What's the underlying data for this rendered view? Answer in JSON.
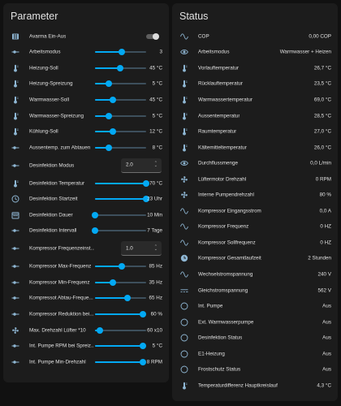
{
  "colors": {
    "accent": "#03a9f4",
    "icon": "#8fb7d4",
    "background": "#111111",
    "card": "#1c1c1c"
  },
  "parameter": {
    "title": "Parameter",
    "rows": [
      {
        "label": "Avarma Ein-Aus",
        "icon": "radiator-icon",
        "type": "toggle",
        "state": "off"
      },
      {
        "label": "Arbeitsmodus",
        "icon": "sliders-horizontal-icon",
        "type": "slider",
        "value": "3",
        "level": 0.52
      },
      {
        "label": "Heizung-Soll",
        "icon": "thermometer-icon",
        "type": "slider",
        "value": "45 °C",
        "level": 0.49
      },
      {
        "label": "Heizung-Spreizung",
        "icon": "thermometer-icon",
        "type": "slider",
        "value": "5 °C",
        "level": 0.27
      },
      {
        "label": "Warmwasser-Soll",
        "icon": "thermometer-icon",
        "type": "slider",
        "value": "45 °C",
        "level": 0.35
      },
      {
        "label": "Warmwasser-Spreizung",
        "icon": "thermometer-icon",
        "type": "slider",
        "value": "5 °C",
        "level": 0.27
      },
      {
        "label": "Kühlung-Soll",
        "icon": "thermometer-icon",
        "type": "slider",
        "value": "12 °C",
        "level": 0.35
      },
      {
        "label": "Aussentemp. zum Abtauen",
        "icon": "sliders-horizontal-icon",
        "type": "slider",
        "value": "8 °C",
        "level": 0.27
      },
      {
        "label": "Desinfektion Modus",
        "icon": "sliders-horizontal-icon",
        "type": "select",
        "value": "2.0"
      },
      {
        "label": "Desinfektion Temperatur",
        "icon": "thermometer-icon",
        "type": "slider",
        "value": "70 °C",
        "level": 1.0
      },
      {
        "label": "Desinfektion Startzeit",
        "icon": "clock-icon",
        "type": "slider",
        "value": "23 Uhr",
        "level": 1.0
      },
      {
        "label": "Desinfektion Dauer",
        "icon": "calendar-icon",
        "type": "slider",
        "value": "10 Min",
        "level": 0.0
      },
      {
        "label": "Desinfektion Intervall",
        "icon": "sliders-horizontal-icon",
        "type": "slider",
        "value": "7 Tage",
        "level": 0.0
      },
      {
        "label": "Kompressor Frequenzeinst...",
        "icon": "sliders-horizontal-icon",
        "type": "select",
        "value": "1.0"
      },
      {
        "label": "Kompressor Max-Frequenz",
        "icon": "sliders-horizontal-icon",
        "type": "slider",
        "value": "85 Hz",
        "level": 0.52
      },
      {
        "label": "Kompressor Min-Frequenz",
        "icon": "sliders-horizontal-icon",
        "type": "slider",
        "value": "35 Hz",
        "level": 0.35
      },
      {
        "label": "Kompressot Abtau-Freque...",
        "icon": "sliders-horizontal-icon",
        "type": "slider",
        "value": "65 Hz",
        "level": 0.63
      },
      {
        "label": "Kompressor Reduktion bei...",
        "icon": "sliders-horizontal-icon",
        "type": "slider",
        "value": "60 %",
        "level": 0.93
      },
      {
        "label": "Max. Drehzahl Lüfter *10",
        "icon": "fan-icon",
        "type": "slider",
        "value": "60 x10",
        "level": 0.1
      },
      {
        "label": "Int. Pumpe RPM bei Spreiz...",
        "icon": "sliders-horizontal-icon",
        "type": "slider",
        "value": "5 °C",
        "level": 0.93
      },
      {
        "label": "Int. Pumpe Min-Drehzahl",
        "icon": "sliders-horizontal-icon",
        "type": "slider",
        "value": "8 RPM",
        "level": 0.93
      }
    ]
  },
  "status": {
    "title": "Status",
    "rows": [
      {
        "label": "COP",
        "icon": "sine-wave-icon",
        "value": "0,00 COP"
      },
      {
        "label": "Arbeitsmodus",
        "icon": "eye-icon",
        "value": "Warmwasser + Heizen"
      },
      {
        "label": "Vorlauftemperatur",
        "icon": "thermometer-icon",
        "value": "26,7 °C"
      },
      {
        "label": "Rücklauftemperatur",
        "icon": "thermometer-icon",
        "value": "23,5 °C"
      },
      {
        "label": "Warmwassertemperatur",
        "icon": "thermometer-icon",
        "value": "69,0 °C"
      },
      {
        "label": "Aussentemperatur",
        "icon": "thermometer-icon",
        "value": "28,5 °C"
      },
      {
        "label": "Raumtemperatur",
        "icon": "thermometer-icon",
        "value": "27,0 °C"
      },
      {
        "label": "Kältemitteltemperatur",
        "icon": "thermometer-icon",
        "value": "26,0 °C"
      },
      {
        "label": "Durchflussmenge",
        "icon": "eye-icon",
        "value": "0,0 L/min"
      },
      {
        "label": "Lüftermotor Drehzahl",
        "icon": "fan-icon",
        "value": "0 RPM"
      },
      {
        "label": "Interne Pumpendrehzahl",
        "icon": "fan-icon",
        "value": "80 %"
      },
      {
        "label": "Kompressor Eingangsstrom",
        "icon": "sine-wave-icon",
        "value": "0,0 A"
      },
      {
        "label": "Kompressor Frequenz",
        "icon": "sine-wave-icon",
        "value": "0 HZ"
      },
      {
        "label": "Kompressor Sollfrequenz",
        "icon": "sine-wave-icon",
        "value": "0 HZ"
      },
      {
        "label": "Kompressor Gesamtlaufzeit",
        "icon": "timer-icon",
        "value": "2 Stunden"
      },
      {
        "label": "Wechselstromspannung",
        "icon": "sine-wave-icon",
        "value": "240 V"
      },
      {
        "label": "Gleichstromspannung",
        "icon": "dc-current-icon",
        "value": "562 V"
      },
      {
        "label": "Int. Pumpe",
        "icon": "circle-outline-icon",
        "value": "Aus"
      },
      {
        "label": "Ext. Warmwasserpumpe",
        "icon": "circle-outline-icon",
        "value": "Aus"
      },
      {
        "label": "Desinfektion Status",
        "icon": "circle-outline-icon",
        "value": "Aus"
      },
      {
        "label": "E1-Heizung",
        "icon": "circle-outline-icon",
        "value": "Aus"
      },
      {
        "label": "Frostschutz Status",
        "icon": "circle-outline-icon",
        "value": "Aus"
      },
      {
        "label": "Temperaturdifferenz Hauptkreislauf",
        "icon": "thermometer-icon",
        "value": "4,3 °C"
      }
    ]
  }
}
